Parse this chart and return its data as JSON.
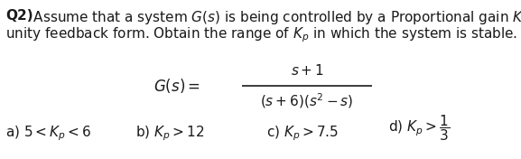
{
  "line1_bold": "Q2)",
  "line1_rest": " Assume that a system $G(s)$ is being controlled by a Proportional gain $K_p$ in a closed loop",
  "line2": "unity feedback form. Obtain the range of $K_p$ in which the system is stable.",
  "gs_lhs": "$G(s) = $",
  "numerator": "$s + 1$",
  "denominator": "$(s + 6)(s^2 - s)$",
  "opt_a": "a) $5 < K_p < 6$",
  "opt_b": "b) $K_p > 12$",
  "opt_c": "c) $K_p > 7.5$",
  "opt_d": "d) $K_p > \\dfrac{1}{3}$",
  "font_size": 11,
  "bold_font_size": 11,
  "text_color": "#1a1a1a",
  "bg_color": "#ffffff",
  "fig_width": 5.77,
  "fig_height": 1.76,
  "dpi": 100
}
